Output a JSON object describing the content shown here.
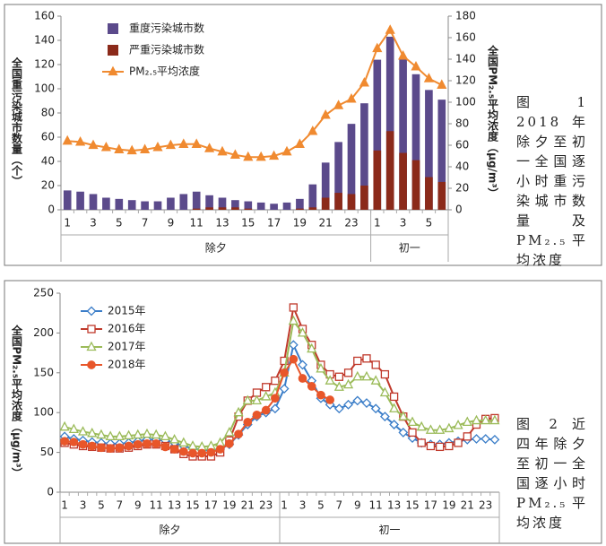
{
  "chart_data": [
    {
      "type": "bar",
      "caption": "图 1 2018年除夕至初一全国逐小时重污染城市数量及PM₂.₅平均浓度",
      "ylabel": "全国重污染城市数量（个）",
      "y2label": "全国PM₂.₅平均浓度（μg/m³）",
      "categories": [
        "1",
        null,
        "3",
        null,
        "5",
        null,
        "7",
        null,
        "9",
        null,
        "11",
        null,
        "13",
        null,
        "15",
        null,
        "17",
        null,
        "19",
        null,
        "21",
        null,
        "23",
        null,
        "1",
        null,
        "3",
        null,
        "5",
        null
      ],
      "groups": [
        {
          "label": "除夕",
          "count": 24
        },
        {
          "label": "初一",
          "count": 6
        }
      ],
      "series": [
        {
          "name": "重度污染城市数",
          "color": "#5b4a8b",
          "values": [
            16,
            15,
            13,
            10,
            9,
            8,
            7,
            7,
            10,
            13,
            15,
            12,
            10,
            8,
            7,
            6,
            5,
            6,
            9,
            21,
            39,
            56,
            71,
            88,
            124,
            143,
            125,
            112,
            99,
            91
          ]
        },
        {
          "name": "严重污染城市数",
          "color": "#8b2a1a",
          "values": [
            0,
            0,
            0,
            0,
            0,
            0,
            0,
            0,
            0,
            0,
            1,
            2,
            2,
            2,
            1,
            0,
            0,
            0,
            1,
            2,
            10,
            14,
            13,
            20,
            49,
            65,
            47,
            41,
            27,
            23
          ]
        },
        {
          "name": "PM₂.₅平均浓度",
          "type": "line",
          "axis": "y2",
          "marker": "triangle",
          "filled": true,
          "color": "#f08a30",
          "values": [
            64,
            63,
            60,
            58,
            56,
            55,
            56,
            58,
            60,
            61,
            61,
            57,
            54,
            51,
            49,
            49,
            50,
            54,
            61,
            73,
            88,
            97,
            103,
            118,
            150,
            167,
            143,
            133,
            122,
            116
          ]
        }
      ],
      "ylim": [
        0,
        160
      ],
      "yticks": [
        0,
        20,
        40,
        60,
        80,
        100,
        120,
        140,
        160
      ],
      "y2lim": [
        0,
        180
      ],
      "y2ticks": [
        0,
        20,
        40,
        60,
        80,
        100,
        120,
        140,
        160,
        180
      ],
      "grid": false,
      "legend": "upper left"
    },
    {
      "type": "line",
      "caption": "图 2 近四年除夕至初一全国逐小时PM₂.₅平均浓度",
      "ylabel": "全国PM₂.₅平均浓度（μg/m³）",
      "categories": [
        "1",
        null,
        "3",
        null,
        "5",
        null,
        "7",
        null,
        "9",
        null,
        "11",
        null,
        "13",
        null,
        "15",
        null,
        "17",
        null,
        "19",
        null,
        "21",
        null,
        "23",
        null,
        "1",
        null,
        "3",
        null,
        "5",
        null,
        "7",
        null,
        "9",
        null,
        "11",
        null,
        "13",
        null,
        "15",
        null,
        "17",
        null,
        "19",
        null,
        "21",
        null,
        "23",
        null
      ],
      "groups": [
        {
          "label": "除夕",
          "count": 24
        },
        {
          "label": "初一",
          "count": 24
        }
      ],
      "series": [
        {
          "name": "2015年",
          "color": "#3a7dc8",
          "marker": "diamond",
          "filled": false,
          "values": [
            70,
            67,
            65,
            63,
            62,
            61,
            61,
            62,
            64,
            66,
            66,
            65,
            62,
            58,
            55,
            53,
            52,
            54,
            60,
            72,
            85,
            95,
            100,
            105,
            130,
            185,
            160,
            140,
            118,
            110,
            105,
            110,
            115,
            112,
            105,
            95,
            85,
            75,
            68,
            62,
            60,
            60,
            62,
            64,
            66,
            67,
            67,
            66
          ]
        },
        {
          "name": "2016年",
          "color": "#c0392b",
          "marker": "square",
          "filled": false,
          "values": [
            62,
            60,
            58,
            57,
            56,
            55,
            55,
            56,
            58,
            60,
            60,
            58,
            54,
            48,
            45,
            45,
            45,
            50,
            65,
            95,
            115,
            125,
            132,
            140,
            165,
            232,
            205,
            185,
            160,
            148,
            145,
            150,
            165,
            168,
            160,
            148,
            120,
            95,
            75,
            62,
            58,
            57,
            58,
            62,
            70,
            85,
            92,
            93
          ]
        },
        {
          "name": "2017年",
          "color": "#9bbb59",
          "marker": "triangle",
          "filled": false,
          "values": [
            82,
            79,
            76,
            74,
            72,
            70,
            70,
            71,
            72,
            73,
            72,
            70,
            66,
            62,
            58,
            57,
            58,
            62,
            75,
            100,
            115,
            115,
            120,
            125,
            150,
            215,
            200,
            180,
            155,
            140,
            132,
            135,
            145,
            145,
            140,
            125,
            105,
            95,
            88,
            82,
            78,
            78,
            80,
            84,
            88,
            90,
            90,
            90
          ]
        },
        {
          "name": "2018年",
          "color": "#e8562a",
          "marker": "circle",
          "filled": true,
          "values": [
            64,
            63,
            60,
            58,
            56,
            55,
            56,
            58,
            60,
            61,
            61,
            57,
            54,
            51,
            49,
            49,
            50,
            54,
            61,
            73,
            88,
            97,
            103,
            118,
            150,
            167,
            143,
            133,
            122,
            116,
            null,
            null,
            null,
            null,
            null,
            null,
            null,
            null,
            null,
            null,
            null,
            null,
            null,
            null,
            null,
            null,
            null,
            null
          ]
        }
      ],
      "ylim": [
        0,
        250
      ],
      "yticks": [
        0,
        50,
        100,
        150,
        200,
        250
      ],
      "grid": false,
      "legend": "upper left"
    }
  ]
}
